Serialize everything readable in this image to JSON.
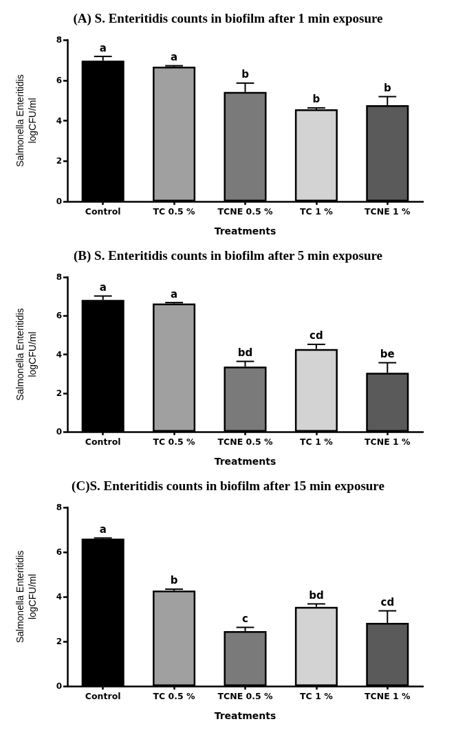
{
  "chart_data": [
    {
      "type": "bar",
      "title": "(A) S. Enteritidis counts in biofilm after 1 min exposure",
      "xlabel": "Treatments",
      "ylabel": "Salmonella Enteritidis\nlogCFU/ml",
      "categories": [
        "Control",
        "TC 0.5 %",
        "TCNE 0.5 %",
        "TC 1 %",
        "TCNE 1 %"
      ],
      "values": [
        6.97,
        6.67,
        5.42,
        4.56,
        4.77
      ],
      "colors": [
        "#000000",
        "#a0a0a0",
        "#7a7a7a",
        "#d3d3d3",
        "#5a5a5a"
      ],
      "errors": [
        [
          6.97,
          7.18
        ],
        [
          6.67,
          6.72
        ],
        [
          5.42,
          5.86
        ],
        [
          4.56,
          4.63
        ],
        [
          4.77,
          5.19
        ]
      ],
      "ylim": [
        0,
        8
      ],
      "yticks": [
        0,
        2,
        4,
        6,
        8
      ],
      "grid": false,
      "annotations": [
        {
          "text": "a",
          "x": "Control",
          "y": 7.18
        },
        {
          "text": "a",
          "x": "TC 0.5 %",
          "y": 6.72
        },
        {
          "text": "b",
          "x": "TCNE 0.5 %",
          "y": 5.86
        },
        {
          "text": "b",
          "x": "TC 1 %",
          "y": 4.63
        },
        {
          "text": "b",
          "x": "TCNE 1 %",
          "y": 5.19
        }
      ]
    },
    {
      "type": "bar",
      "title": "(B) S. Enteritidis counts in biofilm after 5 min exposure",
      "xlabel": "Treatments",
      "ylabel": "Salmonella Enteritidis\nlogCFU/ml",
      "categories": [
        "Control",
        "TC 0.5 %",
        "TCNE 0.5 %",
        "TC 1 %",
        "TCNE 1 %"
      ],
      "values": [
        6.82,
        6.63,
        3.37,
        4.28,
        3.05
      ],
      "colors": [
        "#000000",
        "#a0a0a0",
        "#7a7a7a",
        "#d3d3d3",
        "#5a5a5a"
      ],
      "errors": [
        [
          6.82,
          7.02
        ],
        [
          6.63,
          6.68
        ],
        [
          3.37,
          3.64
        ],
        [
          4.28,
          4.52
        ],
        [
          3.05,
          3.57
        ]
      ],
      "ylim": [
        0,
        8
      ],
      "yticks": [
        0,
        2,
        4,
        6,
        8
      ],
      "grid": false,
      "annotations": [
        {
          "text": "a",
          "x": "Control",
          "y": 7.02
        },
        {
          "text": "a",
          "x": "TC 0.5 %",
          "y": 6.68
        },
        {
          "text": "bd",
          "x": "TCNE 0.5 %",
          "y": 3.64
        },
        {
          "text": "cd",
          "x": "TC 1 %",
          "y": 4.52
        },
        {
          "text": "be",
          "x": "TCNE 1 %",
          "y": 3.57
        }
      ]
    },
    {
      "type": "bar",
      "title": "(C)S. Enteritidis counts in biofilm after 15 min exposure",
      "xlabel": "Treatments",
      "ylabel": "Salmonella Enteritidis\nlogCFU/ml",
      "categories": [
        "Control",
        "TC 0.5 %",
        "TCNE 0.5 %",
        "TC 1 %",
        "TCNE 1 %"
      ],
      "values": [
        6.6,
        4.28,
        2.46,
        3.55,
        2.83
      ],
      "colors": [
        "#000000",
        "#a0a0a0",
        "#7a7a7a",
        "#d3d3d3",
        "#5a5a5a"
      ],
      "errors": [
        [
          6.6,
          6.63
        ],
        [
          4.28,
          4.34
        ],
        [
          2.46,
          2.63
        ],
        [
          3.55,
          3.68
        ],
        [
          2.83,
          3.37
        ]
      ],
      "ylim": [
        0,
        8
      ],
      "yticks": [
        0,
        2,
        4,
        6,
        8
      ],
      "grid": false,
      "annotations": [
        {
          "text": "a",
          "x": "Control",
          "y": 6.63
        },
        {
          "text": "b",
          "x": "TC 0.5 %",
          "y": 4.34
        },
        {
          "text": "c",
          "x": "TCNE 0.5 %",
          "y": 2.63
        },
        {
          "text": "bd",
          "x": "TC 1 %",
          "y": 3.68
        },
        {
          "text": "cd",
          "x": "TCNE 1 %",
          "y": 3.37
        }
      ]
    }
  ]
}
